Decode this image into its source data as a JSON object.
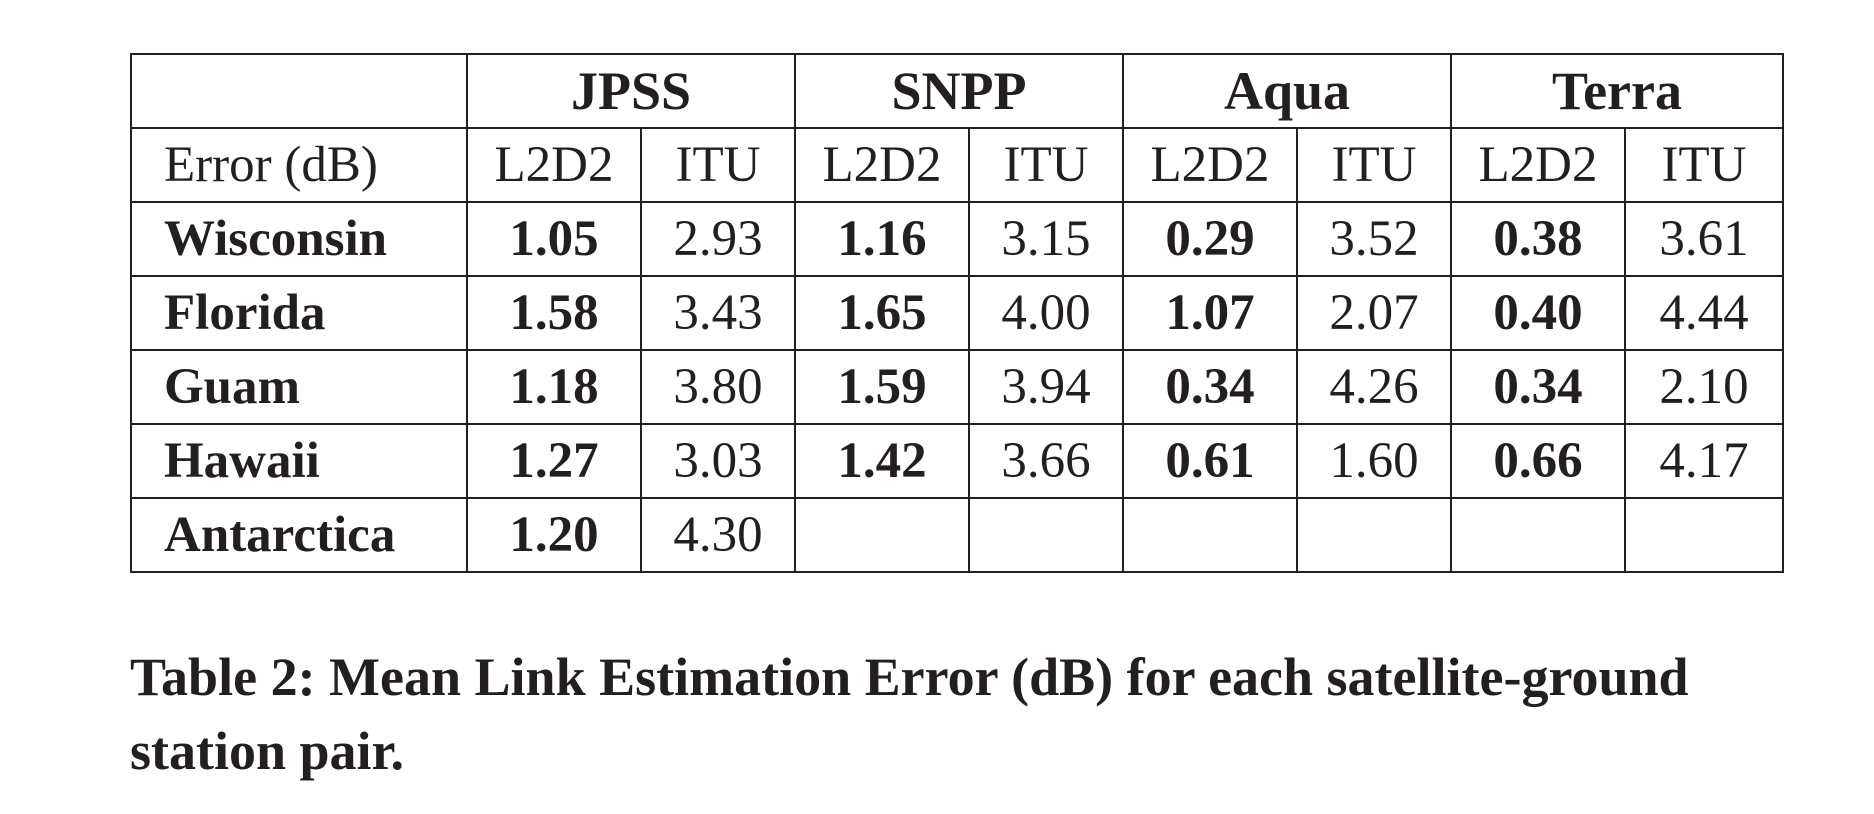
{
  "table": {
    "corner": "",
    "satellites": [
      "JPSS",
      "SNPP",
      "Aqua",
      "Terra"
    ],
    "metric_label": "Error (dB)",
    "sub_columns": [
      "L2D2",
      "ITU",
      "L2D2",
      "ITU",
      "L2D2",
      "ITU",
      "L2D2",
      "ITU"
    ],
    "rows": [
      {
        "station": "Wisconsin",
        "values": [
          "1.05",
          "2.93",
          "1.16",
          "3.15",
          "0.29",
          "3.52",
          "0.38",
          "3.61"
        ]
      },
      {
        "station": "Florida",
        "values": [
          "1.58",
          "3.43",
          "1.65",
          "4.00",
          "1.07",
          "2.07",
          "0.40",
          "4.44"
        ]
      },
      {
        "station": "Guam",
        "values": [
          "1.18",
          "3.80",
          "1.59",
          "3.94",
          "0.34",
          "4.26",
          "0.34",
          "2.10"
        ]
      },
      {
        "station": "Hawaii",
        "values": [
          "1.27",
          "3.03",
          "1.42",
          "3.66",
          "0.61",
          "1.60",
          "0.66",
          "4.17"
        ]
      },
      {
        "station": "Antarctica",
        "values": [
          "1.20",
          "4.30",
          "",
          "",
          "",
          "",
          "",
          ""
        ]
      }
    ]
  },
  "caption": "Table 2: Mean Link Estimation Error (dB) for each satellite-ground station pair."
}
